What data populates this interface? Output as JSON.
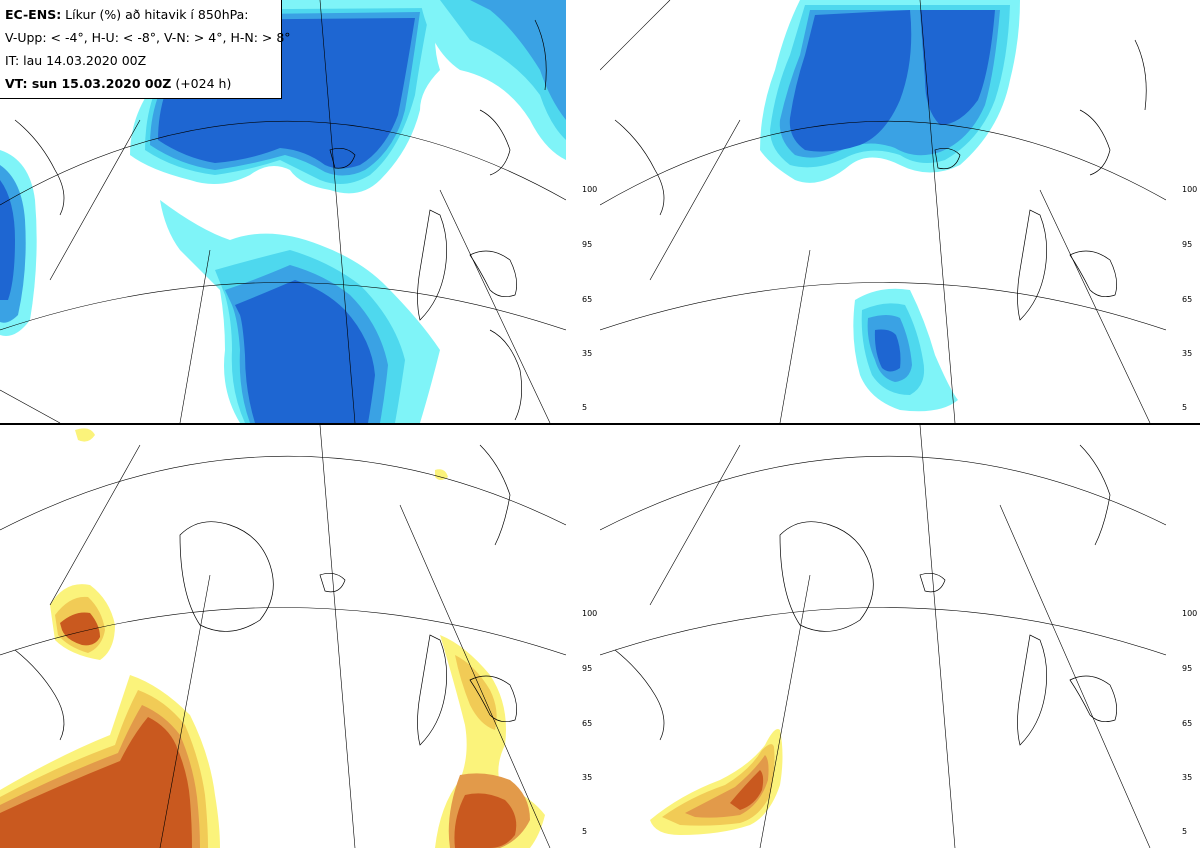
{
  "info": {
    "model": "EC-ENS:",
    "title_rest": " Líkur (%) að hitavik í 850hPa:",
    "legend_line": "V-Upp: < -4°, H-U: < -8°, V-N: > 4°, H-N: > 8°",
    "it_line": "IT: lau 14.03.2020 00Z",
    "vt_bold": "VT:  sun 15.03.2020 00Z",
    "vt_rest": " (+024 h)"
  },
  "panels": [
    {
      "id": "upper-left",
      "label": "V-Upp",
      "palette": "cold"
    },
    {
      "id": "upper-right",
      "label": "H-U",
      "palette": "cold"
    },
    {
      "id": "lower-left",
      "label": "V-N",
      "palette": "warm"
    },
    {
      "id": "lower-right",
      "label": "H-N",
      "palette": "warm"
    }
  ],
  "colorbar_ticks": [
    "100",
    "95",
    "65",
    "35",
    "5"
  ],
  "colors": {
    "cold": [
      "#7ff4f8",
      "#4ed8ee",
      "#3aa2e4",
      "#1e66d2"
    ],
    "warm": [
      "#fbf37b",
      "#f1cb56",
      "#e29a4a",
      "#c9591f"
    ],
    "land_line": "#000000",
    "grid_line": "#000000"
  }
}
